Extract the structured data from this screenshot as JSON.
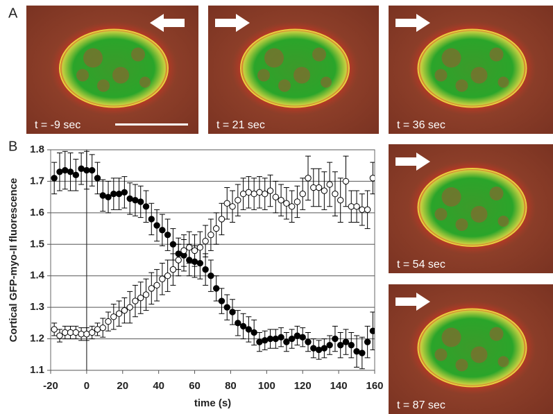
{
  "panel_labels": [
    "A",
    "B"
  ],
  "images": [
    {
      "caption": "t = -9 sec"
    },
    {
      "caption": "t = 21 sec"
    },
    {
      "caption": "t = 36 sec"
    },
    {
      "caption": "t = 54 sec"
    },
    {
      "caption": "t = 87 sec"
    }
  ],
  "chart_data": {
    "type": "scatter",
    "xlabel": "time (s)",
    "ylabel": "Cortical GFP-myo-II fluorescence",
    "xlim": [
      -20,
      160
    ],
    "xticks": [
      -20,
      0,
      20,
      40,
      60,
      80,
      100,
      120,
      140,
      160
    ],
    "ylim": [
      1.1,
      1.8
    ],
    "yticks": [
      1.1,
      1.2,
      1.3,
      1.4,
      1.5,
      1.6,
      1.7,
      1.8
    ],
    "grid": true,
    "vline": 0,
    "x": [
      -18,
      -15,
      -12,
      -9,
      -6,
      -3,
      0,
      3,
      6,
      9,
      12,
      15,
      18,
      21,
      24,
      27,
      30,
      33,
      36,
      39,
      42,
      45,
      48,
      51,
      54,
      57,
      60,
      63,
      66,
      69,
      72,
      75,
      78,
      81,
      84,
      87,
      90,
      93,
      96,
      99,
      102,
      105,
      108,
      111,
      114,
      117,
      120,
      123,
      126,
      129,
      132,
      135,
      138,
      141,
      144,
      147,
      150,
      153,
      156,
      159
    ],
    "series": [
      {
        "color": "#000000",
        "marker_fill": "#000000",
        "values": [
          1.71,
          1.73,
          1.735,
          1.73,
          1.72,
          1.74,
          1.735,
          1.735,
          1.71,
          1.655,
          1.65,
          1.66,
          1.66,
          1.665,
          1.645,
          1.64,
          1.635,
          1.62,
          1.58,
          1.56,
          1.545,
          1.53,
          1.5,
          1.47,
          1.465,
          1.45,
          1.445,
          1.44,
          1.42,
          1.4,
          1.36,
          1.32,
          1.3,
          1.285,
          1.25,
          1.24,
          1.23,
          1.22,
          1.19,
          1.195,
          1.2,
          1.2,
          1.205,
          1.19,
          1.2,
          1.21,
          1.205,
          1.19,
          1.17,
          1.165,
          1.17,
          1.18,
          1.2,
          1.18,
          1.19,
          1.18,
          1.16,
          1.155,
          1.19,
          1.225
        ],
        "errors": [
          0.05,
          0.06,
          0.06,
          0.06,
          0.05,
          0.05,
          0.06,
          0.05,
          0.05,
          0.05,
          0.05,
          0.05,
          0.05,
          0.05,
          0.05,
          0.05,
          0.05,
          0.05,
          0.05,
          0.05,
          0.05,
          0.05,
          0.05,
          0.05,
          0.05,
          0.05,
          0.05,
          0.05,
          0.05,
          0.05,
          0.04,
          0.04,
          0.04,
          0.04,
          0.04,
          0.04,
          0.04,
          0.04,
          0.03,
          0.03,
          0.03,
          0.03,
          0.03,
          0.03,
          0.03,
          0.03,
          0.03,
          0.03,
          0.03,
          0.03,
          0.03,
          0.03,
          0.04,
          0.04,
          0.04,
          0.04,
          0.05,
          0.05,
          0.05,
          0.06
        ]
      },
      {
        "color": "#000000",
        "marker_fill": "#ffffff",
        "values": [
          1.23,
          1.21,
          1.22,
          1.22,
          1.22,
          1.215,
          1.215,
          1.22,
          1.23,
          1.235,
          1.255,
          1.27,
          1.28,
          1.29,
          1.3,
          1.32,
          1.33,
          1.34,
          1.36,
          1.37,
          1.39,
          1.4,
          1.42,
          1.45,
          1.48,
          1.49,
          1.48,
          1.49,
          1.51,
          1.53,
          1.55,
          1.58,
          1.63,
          1.62,
          1.64,
          1.66,
          1.665,
          1.66,
          1.665,
          1.66,
          1.67,
          1.65,
          1.64,
          1.63,
          1.62,
          1.635,
          1.66,
          1.71,
          1.68,
          1.68,
          1.67,
          1.69,
          1.66,
          1.64,
          1.7,
          1.62,
          1.62,
          1.61,
          1.61,
          1.71
        ],
        "errors": [
          0.02,
          0.02,
          0.02,
          0.02,
          0.02,
          0.02,
          0.02,
          0.02,
          0.02,
          0.03,
          0.03,
          0.04,
          0.04,
          0.04,
          0.05,
          0.05,
          0.05,
          0.05,
          0.05,
          0.05,
          0.05,
          0.05,
          0.05,
          0.05,
          0.05,
          0.05,
          0.05,
          0.05,
          0.05,
          0.05,
          0.05,
          0.05,
          0.05,
          0.05,
          0.05,
          0.05,
          0.05,
          0.05,
          0.05,
          0.05,
          0.05,
          0.05,
          0.05,
          0.05,
          0.05,
          0.05,
          0.05,
          0.07,
          0.06,
          0.06,
          0.06,
          0.07,
          0.07,
          0.07,
          0.08,
          0.05,
          0.05,
          0.05,
          0.06,
          0.05
        ]
      }
    ]
  }
}
